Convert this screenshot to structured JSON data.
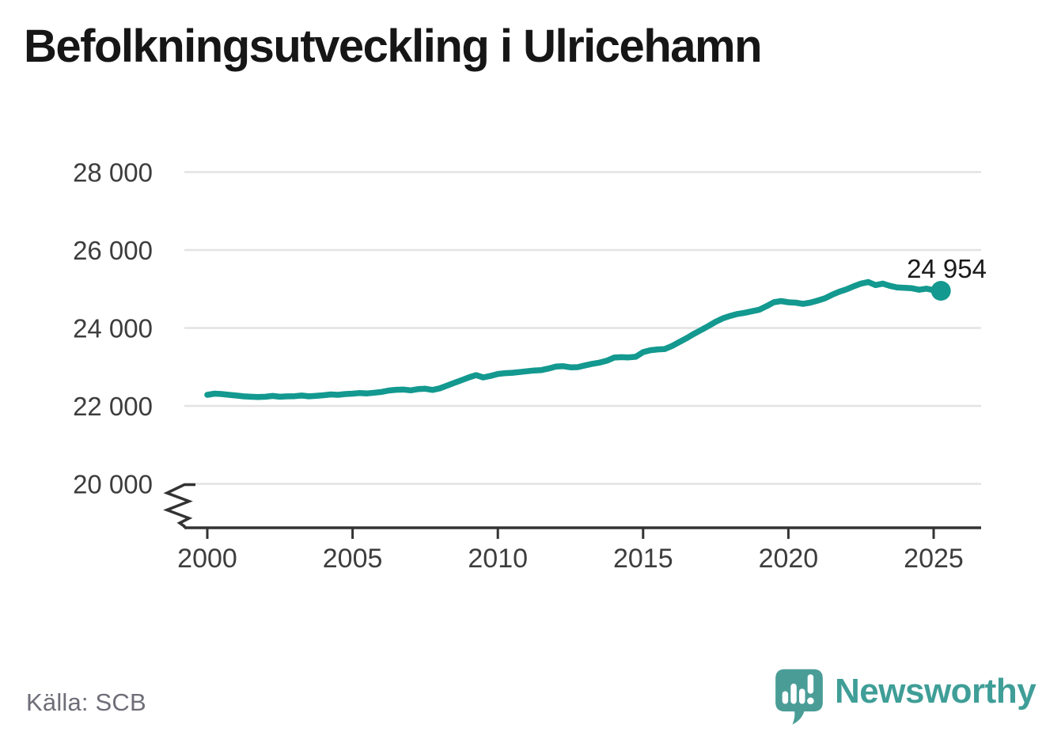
{
  "title": "Befolkningsutveckling i Ulricehamn",
  "source": "Källa: SCB",
  "brand": {
    "name": "Newsworthy",
    "color": "#3f9e97",
    "icon": "newsworthy-speech-bubble-bar-chart-icon"
  },
  "chart_data": {
    "type": "line",
    "title": "Befolkningsutveckling i Ulricehamn",
    "xlabel": "",
    "ylabel": "",
    "frequency": "quarterly",
    "x_start": 2000,
    "x_step_years": 0.25,
    "xlim": [
      1999.2,
      2026.6
    ],
    "ylim": [
      19500,
      28600
    ],
    "grid": "horizontal",
    "axis_break_at_bottom": true,
    "legend": "none",
    "x_ticks": [
      {
        "value": 2000,
        "label": "2000"
      },
      {
        "value": 2005,
        "label": "2005"
      },
      {
        "value": 2010,
        "label": "2010"
      },
      {
        "value": 2015,
        "label": "2015"
      },
      {
        "value": 2020,
        "label": "2020"
      },
      {
        "value": 2025,
        "label": "2025"
      }
    ],
    "y_ticks": [
      {
        "value": 28000,
        "label": "28 000"
      },
      {
        "value": 26000,
        "label": "26 000"
      },
      {
        "value": 24000,
        "label": "24 000"
      },
      {
        "value": 22000,
        "label": "22 000"
      },
      {
        "value": 20000,
        "label": "20 000"
      }
    ],
    "end_point": {
      "x": 2025.25,
      "value": 24954,
      "label": "24 954"
    },
    "series": [
      {
        "name": "Folkmängd Ulricehamn",
        "color": "#13998F",
        "values": [
          22285,
          22315,
          22305,
          22285,
          22265,
          22245,
          22235,
          22230,
          22235,
          22255,
          22235,
          22245,
          22250,
          22265,
          22245,
          22260,
          22275,
          22295,
          22285,
          22305,
          22315,
          22330,
          22320,
          22340,
          22360,
          22395,
          22415,
          22420,
          22400,
          22430,
          22440,
          22410,
          22450,
          22520,
          22590,
          22660,
          22730,
          22790,
          22730,
          22770,
          22820,
          22840,
          22850,
          22870,
          22890,
          22910,
          22920,
          22960,
          23010,
          23020,
          22990,
          22995,
          23040,
          23080,
          23110,
          23160,
          23240,
          23250,
          23245,
          23260,
          23380,
          23430,
          23450,
          23460,
          23540,
          23640,
          23740,
          23850,
          23950,
          24050,
          24160,
          24250,
          24310,
          24360,
          24390,
          24430,
          24470,
          24560,
          24660,
          24690,
          24660,
          24650,
          24620,
          24650,
          24700,
          24760,
          24850,
          24930,
          24990,
          25070,
          25140,
          25180,
          25100,
          25140,
          25080,
          25040,
          25030,
          25020,
          24980,
          25010,
          24970,
          24954
        ]
      }
    ]
  }
}
